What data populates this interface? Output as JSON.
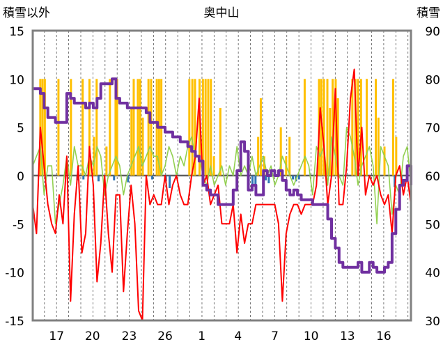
{
  "chart_data": {
    "type": "line",
    "title": "奥中山",
    "ylabel_left": "積雪以外",
    "ylabel_right": "積雪",
    "xlim": [
      0,
      100
    ],
    "ylim_left": [
      -15,
      15
    ],
    "ylim_right": [
      30,
      90
    ],
    "x_ticks": [
      "17",
      "20",
      "23",
      "26",
      "1",
      "4",
      "7",
      "10",
      "13",
      "16"
    ],
    "x_tick_positions": [
      6.3,
      15.8,
      25.5,
      35.0,
      44.7,
      54.3,
      64.0,
      73.6,
      83.2,
      92.8
    ],
    "y_left_ticks": [
      "15",
      "10",
      "5",
      "0",
      "-5",
      "-10",
      "-15"
    ],
    "y_right_ticks": [
      "90",
      "80",
      "70",
      "60",
      "50",
      "40",
      "30"
    ],
    "grid": "vertical-dashed",
    "colors": {
      "temperature": "#ff0000",
      "precip": "#ffc000",
      "wind": "#92d050",
      "snow_depth": "#7030a0",
      "blue": "#2e75b6",
      "frame": "#808080"
    },
    "series": [
      {
        "name": "",
        "axis": "left",
        "color": "#ff0000",
        "x": [
          0,
          1,
          2,
          3,
          4,
          5,
          6,
          7,
          8,
          9,
          10,
          11,
          12,
          13,
          14,
          15,
          16,
          17,
          18,
          19,
          20,
          21,
          22,
          23,
          24,
          25,
          26,
          27,
          28,
          29,
          30,
          31,
          32,
          33,
          34,
          35,
          36,
          37,
          38,
          39,
          40,
          41,
          42,
          43,
          44,
          45,
          46,
          47,
          48,
          49,
          50,
          51,
          52,
          53,
          54,
          55,
          56,
          57,
          58,
          59,
          60,
          61,
          62,
          63,
          64,
          65,
          66,
          67,
          68,
          69,
          70,
          71,
          72,
          73,
          74,
          75,
          76,
          77,
          78,
          79,
          80,
          81,
          82,
          83,
          84,
          85,
          86,
          87,
          88,
          89,
          90,
          91,
          92,
          93,
          94,
          95,
          96,
          97,
          98,
          99,
          100
        ],
        "y": [
          -3,
          -6,
          5,
          1,
          -3,
          -5,
          -6,
          -2,
          -5,
          2,
          -13,
          -4,
          1,
          -8,
          -6,
          3,
          -1,
          -11,
          -7,
          0,
          -6,
          -10,
          -2,
          -2,
          -12,
          -6,
          -1,
          -5,
          -14,
          -15,
          0,
          -3,
          -2,
          -3,
          -3,
          0,
          -3,
          -1,
          0,
          -2,
          -3,
          -3,
          0,
          2,
          8,
          -1,
          0,
          -3,
          -2,
          -1,
          -5,
          -5,
          -5,
          -3,
          -8,
          -4,
          -7,
          -5,
          -5,
          -3,
          -3,
          -3,
          -3,
          -3,
          -3,
          -5,
          -13,
          -6,
          -4,
          -3,
          -3,
          -4,
          -3,
          -3,
          -3,
          -1,
          7,
          3,
          -3,
          0,
          9,
          -3,
          -3,
          1,
          8,
          11,
          0,
          5,
          -2,
          0,
          -1,
          0,
          -2,
          -3,
          -2,
          -6,
          0,
          1,
          -2,
          0,
          -3
        ]
      },
      {
        "name": "",
        "axis": "left",
        "color": "#92d050",
        "x": [
          0,
          1,
          2,
          3,
          4,
          5,
          6,
          7,
          8,
          9,
          10,
          11,
          12,
          13,
          14,
          15,
          16,
          17,
          18,
          19,
          20,
          21,
          22,
          23,
          24,
          25,
          26,
          27,
          28,
          29,
          30,
          31,
          32,
          33,
          34,
          35,
          36,
          37,
          38,
          39,
          40,
          41,
          42,
          43,
          44,
          45,
          46,
          47,
          48,
          49,
          50,
          51,
          52,
          53,
          54,
          55,
          56,
          57,
          58,
          59,
          60,
          61,
          62,
          63,
          64,
          65,
          66,
          67,
          68,
          69,
          70,
          71,
          72,
          73,
          74,
          75,
          76,
          77,
          78,
          79,
          80,
          81,
          82,
          83,
          84,
          85,
          86,
          87,
          88,
          89,
          90,
          91,
          92,
          93,
          94,
          95,
          96,
          97,
          98,
          99,
          100
        ],
        "y": [
          1,
          2,
          3,
          -2,
          1,
          1,
          -5,
          -3,
          -1,
          2,
          -1,
          3,
          1,
          1,
          0,
          2,
          1,
          3,
          2,
          -2,
          0,
          1,
          2,
          1,
          -2,
          0,
          1,
          2,
          3,
          1,
          2,
          3,
          2,
          2,
          0,
          1,
          3,
          2,
          0,
          2,
          1,
          3,
          4,
          2,
          2,
          0,
          -1,
          1,
          -1,
          0,
          1,
          -1,
          1,
          0,
          3,
          0,
          1,
          0,
          2,
          0,
          1,
          2,
          0,
          1,
          -1,
          0,
          2,
          1,
          0,
          -1,
          0,
          1,
          2,
          1,
          -2,
          3,
          2,
          3,
          -1,
          4,
          2,
          0,
          -1,
          5,
          4,
          2,
          -1,
          1,
          2,
          3,
          1,
          -5,
          3,
          2,
          1,
          -4,
          -1,
          -2,
          2,
          3,
          -1
        ]
      },
      {
        "name": "",
        "axis": "right",
        "color": "#7030a0",
        "x": [
          0,
          1,
          2,
          3,
          4,
          5,
          6,
          7,
          8,
          9,
          10,
          11,
          12,
          13,
          14,
          15,
          16,
          17,
          18,
          19,
          20,
          21,
          22,
          23,
          24,
          25,
          26,
          27,
          28,
          29,
          30,
          31,
          32,
          33,
          34,
          35,
          36,
          37,
          38,
          39,
          40,
          41,
          42,
          43,
          44,
          45,
          46,
          47,
          48,
          49,
          50,
          51,
          52,
          53,
          54,
          55,
          56,
          57,
          58,
          59,
          60,
          61,
          62,
          63,
          64,
          65,
          66,
          67,
          68,
          69,
          70,
          71,
          72,
          73,
          74,
          75,
          76,
          77,
          78,
          79,
          80,
          81,
          82,
          83,
          84,
          85,
          86,
          87,
          88,
          89,
          90,
          91,
          92,
          93,
          94,
          95,
          96,
          97,
          98,
          99,
          100
        ],
        "y": [
          78,
          78,
          77,
          74,
          72,
          72,
          71,
          71,
          71,
          77,
          76,
          75,
          75,
          75,
          74,
          75,
          74,
          76,
          79,
          79,
          79,
          80,
          76,
          75,
          75,
          74,
          74,
          74,
          74,
          74,
          73,
          71,
          71,
          70,
          70,
          69,
          69,
          68,
          68,
          67,
          67,
          66,
          65,
          64,
          63,
          58,
          57,
          56,
          56,
          54,
          54,
          54,
          54,
          57,
          61,
          67,
          65,
          57,
          58,
          56,
          56,
          61,
          60,
          61,
          60,
          61,
          59,
          57,
          56,
          57,
          56,
          55,
          55,
          55,
          54,
          54,
          54,
          54,
          51,
          47,
          45,
          42,
          41,
          41,
          41,
          41,
          42,
          40,
          40,
          42,
          41,
          40,
          40,
          41,
          42,
          48,
          53,
          58,
          59,
          62,
          58
        ]
      },
      {
        "name": "",
        "axis": "left",
        "color": "#ffc000",
        "type": "bars",
        "x": [
          2.0,
          2.6,
          3.2,
          6.8,
          10.1,
          13.2,
          15.0,
          16.2,
          16.9,
          19.5,
          20.4,
          21.9,
          22.3,
          26.1,
          26.7,
          27.8,
          28.4,
          29.1,
          30.6,
          31.3,
          32.8,
          33.4,
          34.0,
          41.4,
          42.2,
          42.9,
          44.1,
          45.0,
          45.7,
          46.4,
          47.1,
          47.9,
          49.6,
          59.6,
          60.3,
          61.2,
          65.6,
          67.0,
          67.9,
          71.9,
          75.7,
          76.3,
          77.0,
          77.9,
          78.6,
          79.3,
          80.1,
          80.7,
          84.5,
          85.3,
          86.0,
          86.8,
          88.3,
          90.7,
          91.4,
          93.0,
          95.3,
          96.1
        ],
        "y": [
          10,
          10,
          10,
          10,
          10,
          10,
          10,
          4,
          10,
          3,
          10,
          10,
          10,
          7,
          10,
          10,
          10,
          6,
          10,
          10,
          10,
          10,
          10,
          10,
          10,
          10,
          10,
          10,
          10,
          10,
          10,
          2,
          7,
          4,
          8,
          2,
          5,
          2,
          4,
          10,
          10,
          10,
          10,
          10,
          7,
          10,
          10,
          8,
          10,
          10,
          10,
          10,
          10,
          10,
          6,
          3,
          10,
          4
        ]
      },
      {
        "name": "",
        "axis": "left",
        "color": "#2e75b6",
        "type": "bars",
        "x": [
          11.8,
          13.4,
          17.4,
          21.5,
          25.2,
          31.6,
          35.2,
          36.2,
          57.1,
          58.1,
          58.9,
          61.6,
          62.4,
          68.8,
          69.6,
          70.4,
          95.7,
          97.5
        ],
        "y": [
          -0.5,
          -0.4,
          -0.6,
          -0.5,
          -0.7,
          -0.4,
          -0.6,
          -1.3,
          -1.0,
          -1.6,
          -1.1,
          -0.5,
          -0.8,
          -0.4,
          -0.6,
          -0.4,
          -1.2,
          -0.7
        ]
      }
    ]
  }
}
